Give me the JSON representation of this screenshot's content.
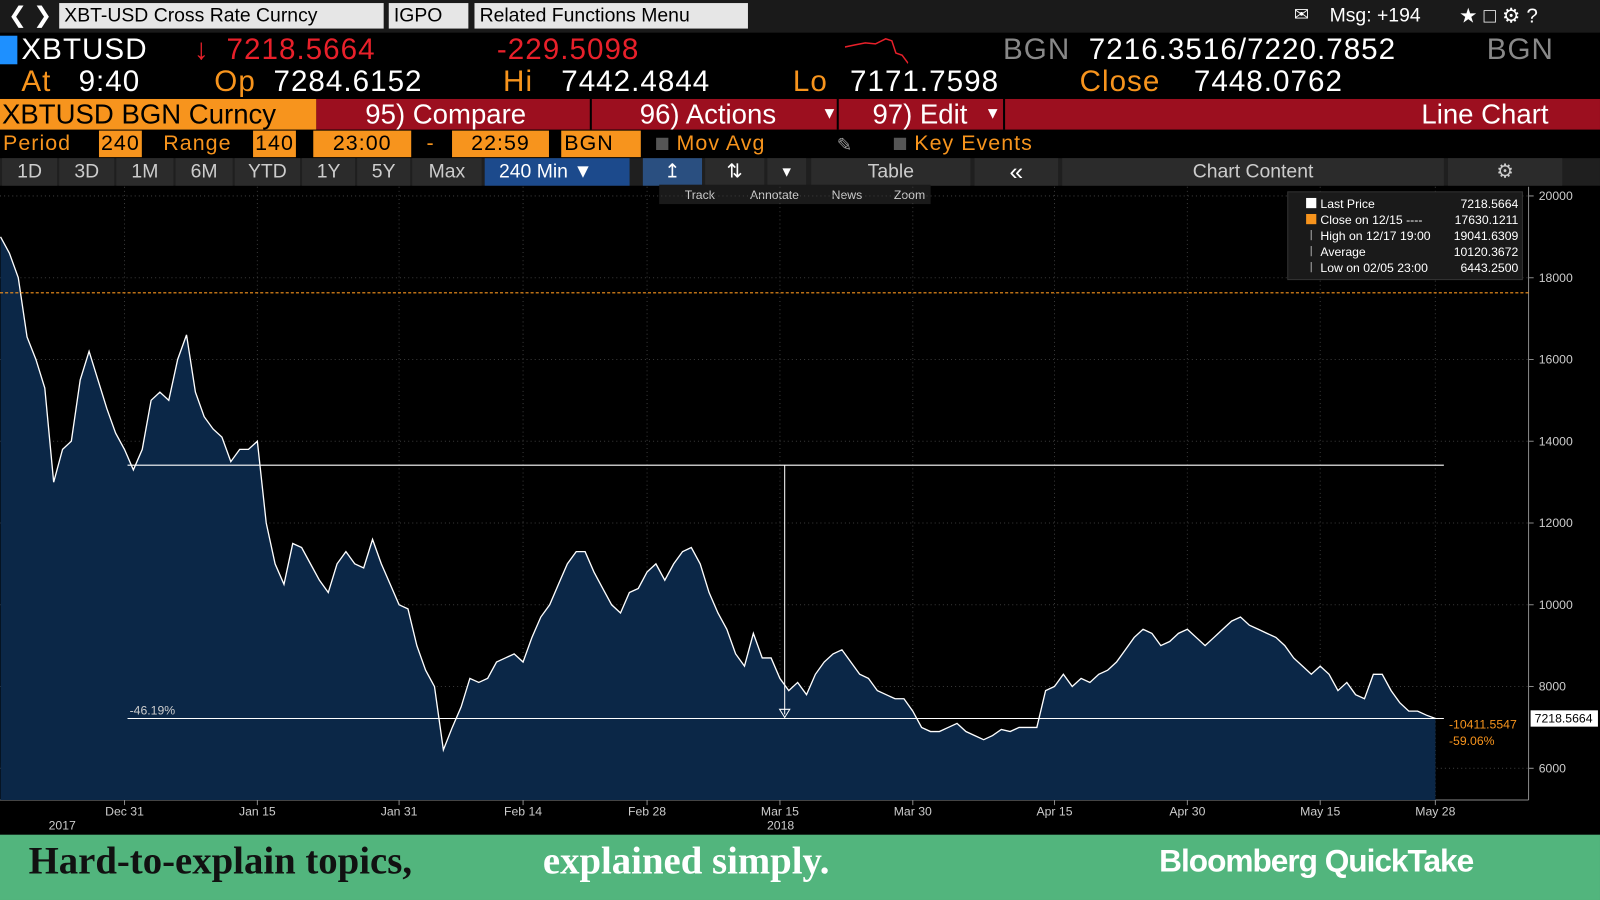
{
  "toolbar": {
    "security": "XBT-USD Cross Rate Curncy",
    "source": "IGPO",
    "menu": "Related Functions Menu",
    "messages": "Msg: +194"
  },
  "quote": {
    "ticker": "XBTUSD",
    "last": "7218.5664",
    "change": "-229.5098",
    "source": "BGN",
    "bid_ask": "7216.3516/7220.7852",
    "source2": "BGN",
    "time_label": "At",
    "time": "9:40",
    "open_label": "Op",
    "open": "7284.6152",
    "high_label": "Hi",
    "high": "7442.4844",
    "low_label": "Lo",
    "low": "7171.7598",
    "close_label": "Close",
    "close": "7448.0762"
  },
  "menu_bar": {
    "security": "XBTUSD BGN Curncy",
    "items": [
      "95) Compare",
      "96) Actions",
      "97) Edit"
    ],
    "view": "Line Chart"
  },
  "settings": {
    "period_label": "Period",
    "period": "240",
    "range_label": "Range",
    "range": "140",
    "start": "23:00",
    "separator": "-",
    "end": "22:59",
    "source": "BGN",
    "mov_avg": "Mov Avg",
    "key_events": "Key Events"
  },
  "ranges": [
    "1D",
    "3D",
    "1M",
    "6M",
    "YTD",
    "1Y",
    "5Y",
    "Max"
  ],
  "interval": "240 Min",
  "table": "Table",
  "chart_content": "Chart Content",
  "chart_tools": [
    "Track",
    "Annotate",
    "News",
    "Zoom"
  ],
  "chart_data": {
    "type": "area",
    "categories": [
      null,
      null,
      null,
      null,
      null,
      null,
      null,
      null,
      null,
      null,
      null,
      null,
      null,
      null,
      "Dec 31",
      null,
      null,
      null,
      null,
      null,
      null,
      null,
      null,
      null,
      null,
      null,
      null,
      null,
      null,
      "Jan 15",
      null,
      null,
      null,
      null,
      null,
      null,
      null,
      null,
      null,
      null,
      null,
      null,
      null,
      null,
      null,
      "Jan 31",
      null,
      null,
      null,
      null,
      null,
      null,
      null,
      null,
      null,
      null,
      null,
      null,
      null,
      "Feb 14",
      null,
      null,
      null,
      null,
      null,
      null,
      null,
      null,
      null,
      null,
      null,
      null,
      null,
      "Feb 28",
      null,
      null,
      null,
      null,
      null,
      null,
      null,
      null,
      null,
      null,
      null,
      null,
      null,
      null,
      "Mar 15",
      null,
      null,
      null,
      null,
      null,
      null,
      null,
      null,
      null,
      null,
      null,
      null,
      null,
      null,
      "Mar 30",
      null,
      null,
      null,
      null,
      null,
      null,
      null,
      null,
      null,
      null,
      null,
      null,
      null,
      null,
      null,
      "Apr 15",
      null,
      null,
      null,
      null,
      null,
      null,
      null,
      null,
      null,
      null,
      null,
      null,
      null,
      null,
      "Apr 30",
      null,
      null,
      null,
      null,
      null,
      null,
      null,
      null,
      null,
      null,
      null,
      null,
      null,
      null,
      "May 15",
      null,
      null,
      null,
      null,
      null,
      null,
      null,
      null,
      null,
      null,
      null,
      null,
      "May 28"
    ],
    "values": [
      19000,
      18600,
      18000,
      16550,
      16000,
      15300,
      13000,
      13800,
      14000,
      15500,
      16200,
      15500,
      14800,
      14200,
      13800,
      13300,
      13800,
      15000,
      15200,
      15000,
      16000,
      16600,
      15200,
      14600,
      14300,
      14100,
      13500,
      13800,
      13800,
      14000,
      12000,
      11000,
      10500,
      11500,
      11400,
      11000,
      10600,
      10300,
      11000,
      11300,
      11000,
      10900,
      11600,
      11000,
      10500,
      10000,
      9900,
      9000,
      8400,
      8000,
      6450,
      7000,
      7500,
      8200,
      8100,
      8200,
      8600,
      8700,
      8800,
      8600,
      9200,
      9700,
      10000,
      10500,
      11000,
      11300,
      11300,
      10800,
      10400,
      10000,
      9800,
      10300,
      10400,
      10800,
      11000,
      10600,
      11000,
      11300,
      11400,
      11000,
      10300,
      9800,
      9400,
      8800,
      8500,
      9300,
      8700,
      8700,
      8200,
      7900,
      8100,
      7800,
      8300,
      8600,
      8800,
      8900,
      8600,
      8300,
      8200,
      7900,
      7800,
      7700,
      7700,
      7400,
      7000,
      6900,
      6900,
      7000,
      7100,
      6900,
      6800,
      6700,
      6800,
      6950,
      6900,
      7000,
      7000,
      7000,
      7900,
      8000,
      8300,
      8000,
      8200,
      8100,
      8300,
      8400,
      8600,
      8900,
      9200,
      9400,
      9300,
      9000,
      9100,
      9300,
      9400,
      9200,
      9000,
      9200,
      9400,
      9600,
      9700,
      9500,
      9400,
      9300,
      9200,
      9000,
      8700,
      8500,
      8300,
      8500,
      8300,
      7900,
      8100,
      7800,
      7700,
      8300,
      8300,
      7900,
      7600,
      7400,
      7400,
      7300,
      7218.5664
    ],
    "year_labels": [
      "2017",
      "2018"
    ],
    "color": "#ffffff",
    "fill": "#0b2747",
    "ylim": [
      5225,
      20225
    ],
    "yticks": [
      6000,
      8000,
      10000,
      12000,
      14000,
      16000,
      18000,
      20000
    ],
    "grid": true,
    "legend": {
      "position": "top-right",
      "items": [
        {
          "name": "Last Price",
          "value": 7218.5664,
          "color": "#ffffff"
        },
        {
          "name": "Close on 12/15 ----",
          "value": 17630.1211,
          "color": "#f7941d"
        },
        {
          "name": "High on 12/17 19:00",
          "value": 19041.6309,
          "color": "#aaaaaa"
        },
        {
          "name": "Average",
          "value": 10120.3672,
          "color": "#aaaaaa"
        },
        {
          "name": "Low on 02/05 23:00",
          "value": {
            "value": 6443.25,
            "label": "6443.2500"
          },
          "color": "#aaaaaa"
        }
      ]
    },
    "measure": {
      "from": 13414,
      "to": 7218.5664,
      "percent_label": "-46.19%",
      "change_label": "-10411.5547",
      "change_percent_label": "-59.06%"
    }
  },
  "footer": {
    "headline": "Hard-to-explain topics,",
    "tagline": "explained simply.",
    "brand": "Bloomberg QuickTake"
  }
}
